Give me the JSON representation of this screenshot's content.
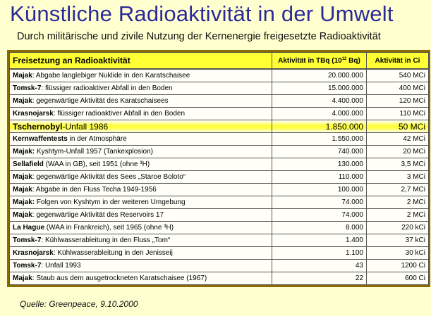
{
  "title": "Künstliche Radioaktivität in der Umwelt",
  "subtitle": "Durch militärische und zivile Nutzung der Kernenergie freigesetzte Radioaktivität",
  "table": {
    "header": {
      "col1": "Freisetzung an Radioaktivität",
      "col2_bold": "Aktivität",
      "col2_rest": " in TBq (10",
      "col2_sup": "12",
      "col2_end": " Bq)",
      "col3_bold": "Aktivität",
      "col3_rest": " in Ci"
    },
    "rows": [
      {
        "place": "Majak",
        "text": ": Abgabe langlebiger Nuklide in den Karatschaisee",
        "tbq": "20.000.000",
        "ci": "540 MCi"
      },
      {
        "place": "Tomsk-7",
        "text": ": flüssiger radioaktiver Abfall in den Boden",
        "tbq": "15.000.000",
        "ci": "400 MCi"
      },
      {
        "place": "Majak",
        "text": ": gegenwärtige Aktivität des Karatschaisees",
        "tbq": "4.400.000",
        "ci": "120 MCi"
      },
      {
        "place": "Krasnojarsk",
        "text": ": flüssiger radioaktiver Abfall in den Boden",
        "tbq": "4.000.000",
        "ci": "110 MCi"
      },
      {
        "place": "Tschernobyl",
        "text": "-Unfall 1986",
        "tbq": "1.850.000",
        "ci": "50 MCi",
        "highlight": true
      },
      {
        "place": "Kernwaffentests",
        "text": " in der Atmosphäre",
        "tbq": "1.550.000",
        "ci": "42 MCi"
      },
      {
        "place": "Majak:",
        "text": " Kyshtym-Unfall 1957 (Tankexplosion)",
        "tbq": "740.000",
        "ci": "20 MCi"
      },
      {
        "place": "Sellafield",
        "text": " (WAA in GB), seit 1951 (ohne ³H)",
        "tbq": "130.000",
        "ci": "3,5 MCi"
      },
      {
        "place": "Majak",
        "text": ": gegenwärtige Aktivität des Sees „Staroe Boloto“",
        "tbq": "110.000",
        "ci": "3 MCi"
      },
      {
        "place": "Majak",
        "text": ": Abgabe in den Fluss Techa 1949-1956",
        "tbq": "100.000",
        "ci": "2,7 MCi"
      },
      {
        "place": "Majak:",
        "text": " Folgen von Kyshtym in der weiteren Umgebung",
        "tbq": "74.000",
        "ci": "2 MCi"
      },
      {
        "place": "Majak",
        "text": ": gegenwärtige Aktivität des Reservoirs 17",
        "tbq": "74.000",
        "ci": "2 MCi"
      },
      {
        "place": "La Hague",
        "text": " (WAA in Frankreich), seit 1965 (ohne ³H)",
        "tbq": "8.000",
        "ci": "220 kCi"
      },
      {
        "place": "Tomsk-7",
        "text": ": Kühlwasserableitung in den Fluss „Tom“",
        "tbq": "1.400",
        "ci": "37 kCi"
      },
      {
        "place": "Krasnojarsk",
        "text": ": Kühlwasserableitung in den Jenisseij",
        "tbq": "1.100",
        "ci": "30 kCi"
      },
      {
        "place": "Tomsk-7",
        "text": ": Unfall 1993",
        "tbq": "43",
        "ci": "1200 Ci"
      },
      {
        "place": "Majak",
        "text": ": Staub aus dem ausgetrockneten Karatschaisee (1967)",
        "tbq": "22",
        "ci": "600 Ci"
      }
    ]
  },
  "source": "Quelle: Greenpeace, 9.10.2000"
}
